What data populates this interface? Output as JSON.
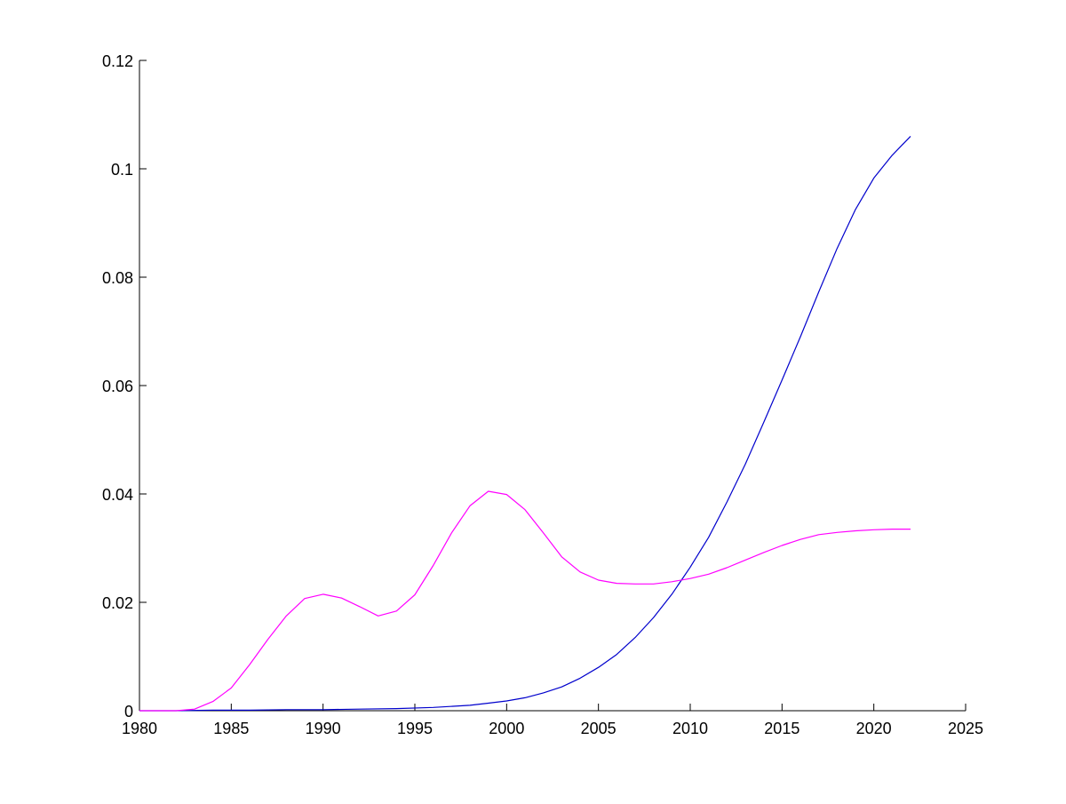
{
  "chart_data": {
    "type": "line",
    "title": "",
    "xlabel": "",
    "ylabel": "",
    "xlim": [
      1980,
      2025
    ],
    "ylim": [
      0,
      0.12
    ],
    "grid": false,
    "x_ticks": [
      "1980",
      "1985",
      "1990",
      "1995",
      "2000",
      "2005",
      "2010",
      "2015",
      "2020",
      "2025"
    ],
    "y_ticks": [
      "0",
      "0.02",
      "0.04",
      "0.06",
      "0.08",
      "0.1",
      "0.12"
    ],
    "series": [
      {
        "color": "#0000cc",
        "points": [
          [
            1980,
            0
          ],
          [
            1982,
            0
          ],
          [
            1984,
            0.0001
          ],
          [
            1986,
            0.0001
          ],
          [
            1988,
            0.0002
          ],
          [
            1990,
            0.0002
          ],
          [
            1992,
            0.0003
          ],
          [
            1994,
            0.0004
          ],
          [
            1996,
            0.0006
          ],
          [
            1998,
            0.001
          ],
          [
            1999,
            0.0014
          ],
          [
            2000,
            0.0018
          ],
          [
            2001,
            0.0024
          ],
          [
            2002,
            0.0033
          ],
          [
            2003,
            0.0044
          ],
          [
            2004,
            0.006
          ],
          [
            2005,
            0.008
          ],
          [
            2006,
            0.0104
          ],
          [
            2007,
            0.0135
          ],
          [
            2008,
            0.0172
          ],
          [
            2009,
            0.0215
          ],
          [
            2010,
            0.0265
          ],
          [
            2011,
            0.032
          ],
          [
            2012,
            0.0385
          ],
          [
            2013,
            0.0455
          ],
          [
            2014,
            0.0532
          ],
          [
            2015,
            0.061
          ],
          [
            2016,
            0.069
          ],
          [
            2017,
            0.0773
          ],
          [
            2018,
            0.0853
          ],
          [
            2019,
            0.0925
          ],
          [
            2020,
            0.0983
          ],
          [
            2021,
            0.1025
          ],
          [
            2022,
            0.106
          ]
        ]
      },
      {
        "color": "#ff00ff",
        "points": [
          [
            1980,
            0
          ],
          [
            1981,
            0
          ],
          [
            1982,
            0
          ],
          [
            1983,
            0.0003
          ],
          [
            1984,
            0.0017
          ],
          [
            1985,
            0.0042
          ],
          [
            1986,
            0.0085
          ],
          [
            1987,
            0.0132
          ],
          [
            1988,
            0.0175
          ],
          [
            1989,
            0.0207
          ],
          [
            1990,
            0.0215
          ],
          [
            1991,
            0.0208
          ],
          [
            1992,
            0.0192
          ],
          [
            1993,
            0.0175
          ],
          [
            1994,
            0.0184
          ],
          [
            1995,
            0.0214
          ],
          [
            1996,
            0.0268
          ],
          [
            1997,
            0.0328
          ],
          [
            1998,
            0.0378
          ],
          [
            1999,
            0.0405
          ],
          [
            2000,
            0.0399
          ],
          [
            2001,
            0.0371
          ],
          [
            2002,
            0.0328
          ],
          [
            2003,
            0.0284
          ],
          [
            2004,
            0.0256
          ],
          [
            2005,
            0.0241
          ],
          [
            2006,
            0.0235
          ],
          [
            2007,
            0.0234
          ],
          [
            2008,
            0.0234
          ],
          [
            2009,
            0.0238
          ],
          [
            2010,
            0.0244
          ],
          [
            2011,
            0.0252
          ],
          [
            2012,
            0.0264
          ],
          [
            2013,
            0.0278
          ],
          [
            2014,
            0.0292
          ],
          [
            2015,
            0.0305
          ],
          [
            2016,
            0.0316
          ],
          [
            2017,
            0.0325
          ],
          [
            2018,
            0.0329
          ],
          [
            2019,
            0.0332
          ],
          [
            2020,
            0.0334
          ],
          [
            2021,
            0.0335
          ],
          [
            2022,
            0.0335
          ]
        ]
      }
    ]
  }
}
